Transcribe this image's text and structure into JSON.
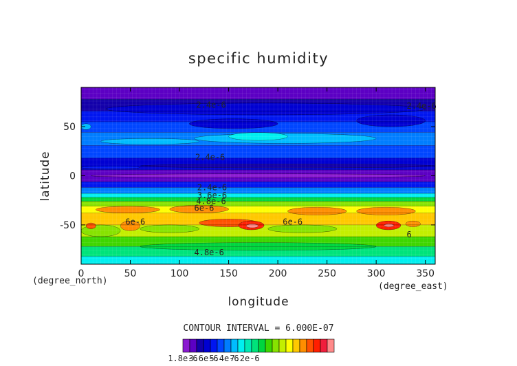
{
  "chart_data": {
    "type": "heatmap",
    "title": "specific humidity",
    "xlabel": "longitude",
    "ylabel": "latitude",
    "x_unit": "(degree_east)",
    "y_unit": "(degree_north)",
    "xlim": [
      0,
      360
    ],
    "ylim": [
      -90,
      90
    ],
    "x_ticks": [
      0,
      50,
      100,
      150,
      200,
      250,
      300,
      350
    ],
    "y_ticks": [
      50,
      0,
      -50
    ],
    "contour_interval_text": "CONTOUR INTERVAL = 6.000E-07",
    "colorbar": {
      "min": 1.8e-06,
      "step": 6e-07,
      "tick_labels": [
        "1.8e-6",
        "3.6e-6",
        "5.4e-6",
        "7.2e-6"
      ],
      "colors": [
        "#8a1ad0",
        "#5c00c4",
        "#1300aa",
        "#0000d2",
        "#0016f0",
        "#0046ff",
        "#007dff",
        "#00bcff",
        "#00f0f0",
        "#00e9b4",
        "#00e37b",
        "#00d63f",
        "#3ed600",
        "#87e300",
        "#c3ef00",
        "#ffff00",
        "#ffc800",
        "#ff8e00",
        "#ff5100",
        "#ff1e00",
        "#f01e3c",
        "#ff8a8a"
      ]
    },
    "contour_labels": [
      {
        "text": "2.4e-6",
        "lon": 117,
        "lat": 72
      },
      {
        "text": "2.4e-6",
        "lon": 331,
        "lat": 71
      },
      {
        "text": "2.4e-6",
        "lon": 116,
        "lat": 19
      },
      {
        "text": "2.4e-6",
        "lon": 118,
        "lat": -12
      },
      {
        "text": "3.6e-6",
        "lon": 118,
        "lat": -20
      },
      {
        "text": "4.8e-6",
        "lon": 117,
        "lat": -26
      },
      {
        "text": "6e-6",
        "lon": 115,
        "lat": -33
      },
      {
        "text": "6e-6",
        "lon": 45,
        "lat": -47
      },
      {
        "text": "6e-6",
        "lon": 205,
        "lat": -47
      },
      {
        "text": "6",
        "lon": 331,
        "lat": -60
      },
      {
        "text": "4.8e-6",
        "lon": 115,
        "lat": -78
      }
    ],
    "bands": [
      {
        "lat": [
          78,
          90
        ],
        "level": 1
      },
      {
        "lat": [
          66,
          78
        ],
        "level": 2
      },
      {
        "lat": [
          55,
          66
        ],
        "level": 4
      },
      {
        "lat": [
          44,
          55
        ],
        "level": 5
      },
      {
        "lat": [
          31,
          44
        ],
        "level": 6
      },
      {
        "lat": [
          18,
          31
        ],
        "level": 5
      },
      {
        "lat": [
          6,
          18
        ],
        "level": 3
      },
      {
        "lat": [
          -6,
          6
        ],
        "level": 1
      },
      {
        "lat": [
          -12,
          -6
        ],
        "level": 4
      },
      {
        "lat": [
          -18,
          -12
        ],
        "level": 6
      },
      {
        "lat": [
          -22,
          -18
        ],
        "level": 8
      },
      {
        "lat": [
          -26,
          -22
        ],
        "level": 11
      },
      {
        "lat": [
          -31,
          -26
        ],
        "level": 13
      },
      {
        "lat": [
          -38,
          -31
        ],
        "level": 15
      },
      {
        "lat": [
          -50,
          -38
        ],
        "level": 16
      },
      {
        "lat": [
          -62,
          -50
        ],
        "level": 14
      },
      {
        "lat": [
          -72,
          -62
        ],
        "level": 12
      },
      {
        "lat": [
          -82,
          -72
        ],
        "level": 10
      },
      {
        "lat": [
          -90,
          -82
        ],
        "level": 8
      }
    ],
    "patches": [
      {
        "lon": [
          115,
          300
        ],
        "lat": [
          33,
          43
        ],
        "level": 7
      },
      {
        "lon": [
          20,
          120
        ],
        "lat": [
          32,
          38
        ],
        "level": 7
      },
      {
        "lon": [
          150,
          210
        ],
        "lat": [
          36,
          44
        ],
        "level": 8
      },
      {
        "lon": [
          25,
          350
        ],
        "lat": [
          62,
          74
        ],
        "level": 3
      },
      {
        "lon": [
          0,
          10
        ],
        "lat": [
          47,
          53
        ],
        "level": 7
      },
      {
        "lon": [
          110,
          200
        ],
        "lat": [
          48,
          58
        ],
        "level": 3
      },
      {
        "lon": [
          280,
          350
        ],
        "lat": [
          50,
          62
        ],
        "level": 3
      },
      {
        "lon": [
          10,
          350
        ],
        "lat": [
          -2,
          2
        ],
        "level": 0
      },
      {
        "lon": [
          60,
          360
        ],
        "lat": [
          8,
          12
        ],
        "level": 2
      },
      {
        "lon": [
          0,
          60
        ],
        "lat": [
          7,
          10
        ],
        "level": 4
      },
      {
        "lon": [
          15,
          80
        ],
        "lat": [
          -38,
          -31
        ],
        "level": 17
      },
      {
        "lon": [
          90,
          150
        ],
        "lat": [
          -38,
          -30
        ],
        "level": 17
      },
      {
        "lon": [
          210,
          270
        ],
        "lat": [
          -40,
          -32
        ],
        "level": 17
      },
      {
        "lon": [
          280,
          340
        ],
        "lat": [
          -40,
          -32
        ],
        "level": 17
      },
      {
        "lon": [
          120,
          180
        ],
        "lat": [
          -52,
          -44
        ],
        "level": 18
      },
      {
        "lon": [
          40,
          60
        ],
        "lat": [
          -56,
          -46
        ],
        "level": 17
      },
      {
        "lon": [
          0,
          40
        ],
        "lat": [
          -62,
          -50
        ],
        "level": 13
      },
      {
        "lon": [
          60,
          120
        ],
        "lat": [
          -58,
          -50
        ],
        "level": 13
      },
      {
        "lon": [
          190,
          260
        ],
        "lat": [
          -58,
          -50
        ],
        "level": 13
      },
      {
        "lon": [
          60,
          300
        ],
        "lat": [
          -76,
          -68
        ],
        "level": 11
      },
      {
        "lon": [
          160,
          186
        ],
        "lat": [
          -55,
          -46
        ],
        "level": 19
      },
      {
        "lon": [
          168,
          180
        ],
        "lat": [
          -53,
          -49
        ],
        "level": 21
      },
      {
        "lon": [
          300,
          325
        ],
        "lat": [
          -55,
          -46
        ],
        "level": 19
      },
      {
        "lon": [
          308,
          318
        ],
        "lat": [
          -52,
          -49
        ],
        "level": 21
      },
      {
        "lon": [
          5,
          15
        ],
        "lat": [
          -54,
          -48
        ],
        "level": 18
      },
      {
        "lon": [
          330,
          345
        ],
        "lat": [
          -52,
          -46
        ],
        "level": 17
      }
    ]
  }
}
